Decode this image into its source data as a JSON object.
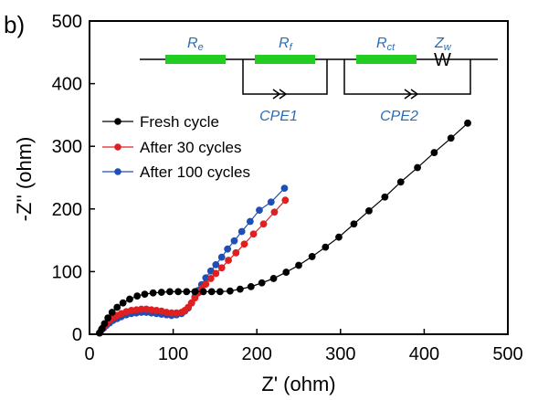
{
  "panel_label": "b)",
  "colors": {
    "fresh": "#000000",
    "after30": "#e02020",
    "after100": "#1f4fb5",
    "resistor": "#22cc22",
    "circuit_label": "#2a6db5"
  },
  "circuit": {
    "labels": [
      {
        "base": "R",
        "sub": "e"
      },
      {
        "base": "R",
        "sub": "f"
      },
      {
        "base": "R",
        "sub": "ct"
      },
      {
        "base": "Z",
        "sub": "w"
      }
    ],
    "warburg_symbol": "W",
    "cpe_labels": [
      "CPE1",
      "CPE2"
    ]
  },
  "chart_data": {
    "type": "scatter",
    "title": "",
    "xlabel": "Z' (ohm)",
    "ylabel": "-Z'' (ohm)",
    "xlim": [
      0,
      500
    ],
    "ylim": [
      0,
      500
    ],
    "xticks": [
      "0",
      "100",
      "200",
      "300",
      "400",
      "500"
    ],
    "yticks": [
      "0",
      "100",
      "200",
      "300",
      "400",
      "500"
    ],
    "grid": false,
    "legend_position": "center-left",
    "series": [
      {
        "name": "Fresh cycle",
        "x": [
          12,
          15,
          18,
          22,
          27,
          33,
          40,
          48,
          57,
          66,
          76,
          86,
          96,
          106,
          116,
          126,
          136,
          146,
          156,
          168,
          180,
          193,
          206,
          220,
          235,
          250,
          266,
          282,
          298,
          316,
          334,
          353,
          372,
          392,
          412,
          432,
          452
        ],
        "y": [
          2,
          9,
          17,
          26,
          35,
          43,
          50,
          56,
          61,
          64,
          66,
          67,
          68,
          68,
          68,
          68,
          68,
          68,
          68,
          69,
          72,
          76,
          82,
          89,
          99,
          110,
          124,
          139,
          155,
          176,
          197,
          219,
          243,
          266,
          290,
          313,
          337
        ]
      },
      {
        "name": "After 30 cycles",
        "x": [
          12,
          14,
          17,
          20,
          24,
          28,
          33,
          38,
          44,
          50,
          56,
          62,
          68,
          74,
          80,
          86,
          92,
          98,
          104,
          110,
          114,
          118,
          122,
          126,
          130,
          134,
          139,
          145,
          151,
          158,
          166,
          175,
          185,
          196,
          208,
          221,
          234
        ],
        "y": [
          2,
          7,
          12,
          17,
          22,
          26,
          30,
          33,
          36,
          38,
          39,
          40,
          40,
          39,
          38,
          37,
          35,
          34,
          34,
          35,
          38,
          43,
          50,
          58,
          66,
          73,
          80,
          89,
          97,
          106,
          118,
          130,
          144,
          160,
          176,
          195,
          214
        ]
      },
      {
        "name": "After 100 cycles",
        "x": [
          12,
          14,
          17,
          20,
          24,
          28,
          33,
          38,
          44,
          50,
          56,
          62,
          68,
          74,
          80,
          86,
          92,
          98,
          104,
          110,
          114,
          118,
          122,
          126,
          130,
          134,
          139,
          145,
          151,
          158,
          165,
          173,
          182,
          192,
          203,
          217,
          233
        ],
        "y": [
          2,
          6,
          10,
          14,
          18,
          22,
          25,
          28,
          31,
          33,
          34,
          35,
          35,
          34,
          33,
          32,
          31,
          30,
          31,
          33,
          37,
          42,
          50,
          60,
          70,
          79,
          90,
          101,
          111,
          123,
          136,
          149,
          164,
          180,
          198,
          211,
          233
        ]
      }
    ]
  }
}
